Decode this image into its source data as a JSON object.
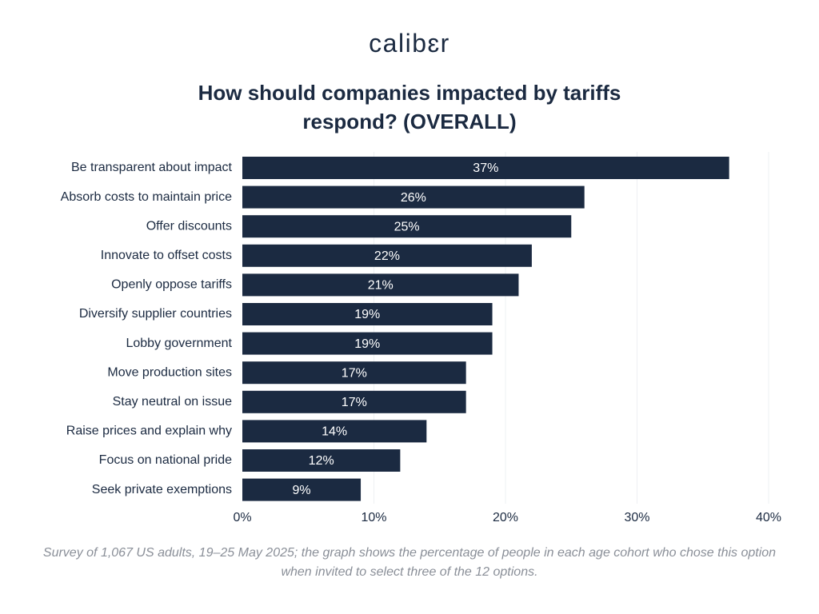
{
  "brand": {
    "logo_text": "calibɛr"
  },
  "chart_data": {
    "type": "bar",
    "orientation": "horizontal",
    "title": "How should companies impacted by tariffs respond? (OVERALL)",
    "categories": [
      "Be transparent about impact",
      "Absorb costs to maintain price",
      "Offer discounts",
      "Innovate to offset costs",
      "Openly oppose tariffs",
      "Diversify supplier countries",
      "Lobby government",
      "Move production sites",
      "Stay neutral on issue",
      "Raise prices and explain why",
      "Focus on national pride",
      "Seek private exemptions"
    ],
    "values": [
      37,
      26,
      25,
      22,
      21,
      19,
      19,
      17,
      17,
      14,
      12,
      9
    ],
    "value_labels": [
      "37%",
      "26%",
      "25%",
      "22%",
      "21%",
      "19%",
      "19%",
      "17%",
      "17%",
      "14%",
      "12%",
      "9%"
    ],
    "xlim": [
      0,
      40
    ],
    "x_ticks": [
      0,
      10,
      20,
      30,
      40
    ],
    "x_tick_labels": [
      "0%",
      "10%",
      "20%",
      "30%",
      "40%"
    ],
    "grid": true,
    "legend": "none",
    "bar_color": "#1b2a41",
    "label_color": "#ffffff",
    "grid_color": "#eef0f3"
  },
  "footnote": "Survey of 1,067 US adults, 19–25 May 2025; the graph shows the percentage of people in each age cohort who chose this option when invited to select three of the 12 options."
}
